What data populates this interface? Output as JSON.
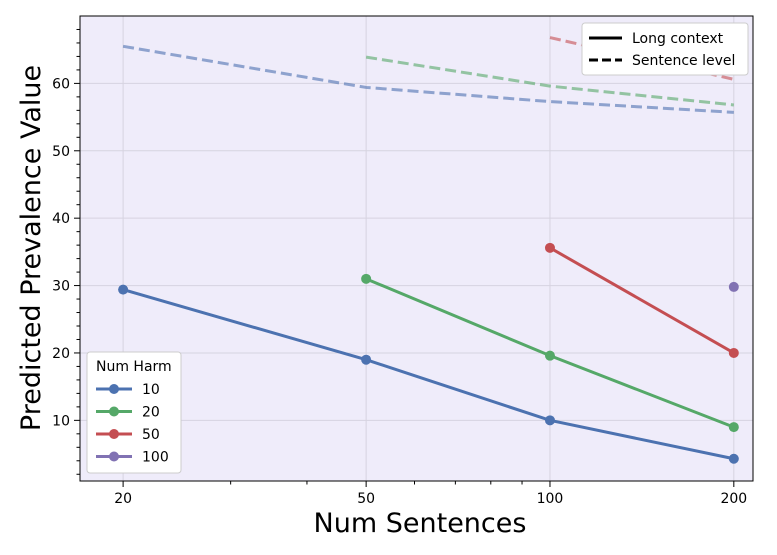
{
  "chart_data": {
    "type": "line",
    "title": "",
    "xlabel": "Num Sentences",
    "ylabel": "Predicted Prevalence Value",
    "x_scale": "log",
    "x_ticks": [
      20,
      50,
      100,
      200
    ],
    "y_ticks": [
      10,
      20,
      30,
      40,
      50,
      60
    ],
    "xlim": [
      17,
      215
    ],
    "ylim": [
      1,
      70
    ],
    "grid": true,
    "line_styles": [
      {
        "name": "Long context",
        "dash": "solid"
      },
      {
        "name": "Sentence level",
        "dash": "dashed"
      }
    ],
    "legend_color_title": "Num Harm",
    "series": [
      {
        "name": "10",
        "color": "#4c72b0",
        "long_context": {
          "x": [
            20,
            50,
            100,
            200
          ],
          "y": [
            29.4,
            19.0,
            10.0,
            4.3
          ]
        },
        "sentence_level": {
          "x": [
            20,
            50,
            100,
            200
          ],
          "y": [
            65.5,
            59.4,
            57.3,
            55.7
          ]
        }
      },
      {
        "name": "20",
        "color": "#55a868",
        "long_context": {
          "x": [
            50,
            100,
            200
          ],
          "y": [
            31.0,
            19.6,
            9.0
          ]
        },
        "sentence_level": {
          "x": [
            50,
            100,
            200
          ],
          "y": [
            63.9,
            59.6,
            56.8
          ]
        }
      },
      {
        "name": "50",
        "color": "#c44e52",
        "long_context": {
          "x": [
            100,
            200
          ],
          "y": [
            35.6,
            20.0
          ]
        },
        "sentence_level": {
          "x": [
            100,
            200
          ],
          "y": [
            66.8,
            60.6
          ]
        }
      },
      {
        "name": "100",
        "color": "#8172b3",
        "long_context": {
          "x": [
            200
          ],
          "y": [
            29.8
          ]
        },
        "sentence_level": {
          "x": [],
          "y": []
        }
      }
    ]
  }
}
